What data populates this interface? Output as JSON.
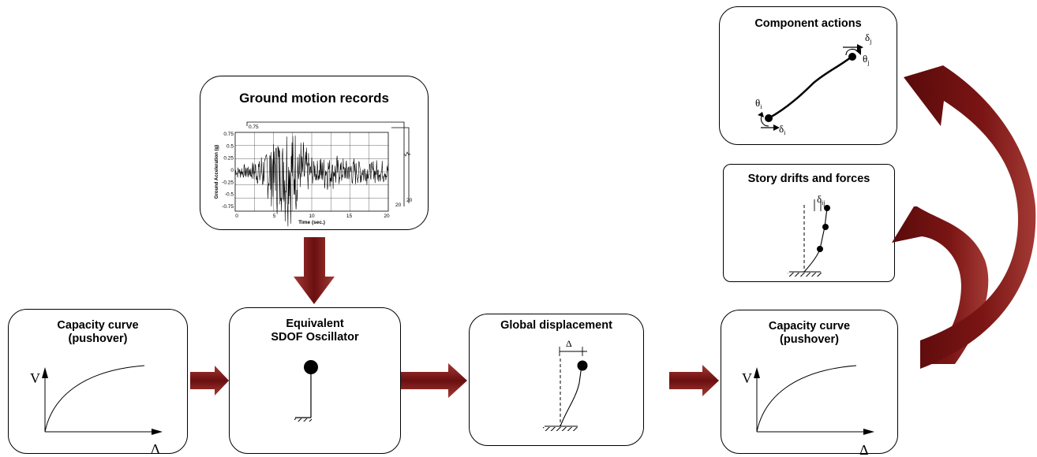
{
  "boxes": {
    "capacity_left": {
      "line1": "Capacity curve",
      "line2": "(pushover)",
      "axis_v": "V",
      "axis_delta": "Δ"
    },
    "sdof": {
      "line1": "Equivalent",
      "line2": "SDOF Oscillator"
    },
    "ground_motion": {
      "title": "Ground motion records",
      "ylabel": "Ground Acceleration (g)",
      "xlabel": "Time (sec.)",
      "yticks": [
        "0.75",
        "0.5",
        "0.25",
        "0",
        "-0.25",
        "-0.5",
        "-0.75"
      ],
      "xticks": [
        "0",
        "5",
        "10",
        "15",
        "20"
      ],
      "back_top_tick": "0.75",
      "back_right_tick": "20",
      "back_right_tick2": "20"
    },
    "global_displacement": {
      "title": "Global displacement",
      "delta": "Δ"
    },
    "capacity_right": {
      "line1": "Capacity curve",
      "line2": "(pushover)",
      "axis_v": "V",
      "axis_delta": "Δ"
    },
    "story_drifts": {
      "title": "Story drifts and forces",
      "delta_label": "δ",
      "delta_sub": "ij"
    },
    "component_actions": {
      "title": "Component actions",
      "theta": "θ",
      "delta": "δ",
      "sub_i": "i",
      "sub_j": "j"
    }
  },
  "colors": {
    "arrow_dark": "#6b0f10",
    "arrow_light": "#a33a35",
    "line": "#000000"
  }
}
